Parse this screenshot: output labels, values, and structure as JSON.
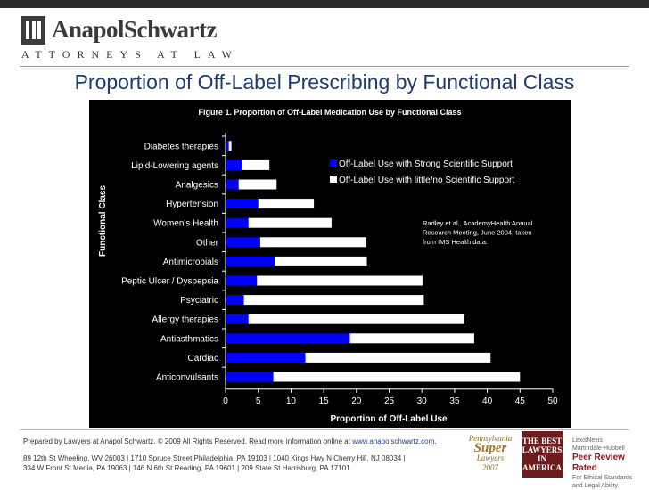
{
  "header": {
    "logo_mark": "III",
    "firm_name": "AnapolSchwartz",
    "firm_tagline": "ATTORNEYS AT LAW"
  },
  "slide_title": "Proportion of Off-Label Prescribing by Functional Class",
  "chart_data": {
    "type": "bar",
    "orientation": "horizontal",
    "stacked": true,
    "title": "Figure 1. Proportion of Off-Label Medication Use by Functional Class",
    "xlabel": "Proportion of Off-Label Use",
    "ylabel": "Functional Class",
    "xlim": [
      0,
      50
    ],
    "xticks": [
      0,
      5,
      10,
      15,
      20,
      25,
      30,
      35,
      40,
      45,
      50
    ],
    "grid": false,
    "legend": "top-right",
    "categories": [
      "Diabetes therapies",
      "Lipid-Lowering agents",
      "Analgesics",
      "Hypertension",
      "Women's Health",
      "Other",
      "Antimicrobials",
      "Peptic Ulcer / Dyspepsia",
      "Psyciatric",
      "Allergy therapies",
      "Antiasthmatics",
      "Cardiac",
      "Anticonvulsants"
    ],
    "series": [
      {
        "name": "Off-Label Use with Strong Scientific Support",
        "color": "#0000ff",
        "values": [
          0.5,
          2.5,
          2.0,
          5.0,
          3.5,
          5.3,
          7.5,
          4.8,
          2.8,
          3.5,
          19.0,
          12.2,
          7.3
        ]
      },
      {
        "name": "Off-Label Use with little/no Scientific Support",
        "color": "#ffffff",
        "values": [
          0.4,
          4.2,
          5.8,
          8.5,
          12.7,
          16.2,
          14.1,
          25.3,
          27.5,
          33.0,
          19.0,
          28.3,
          37.7
        ]
      }
    ],
    "annotation": [
      "Radley et al., AcademyHealth Annual",
      "Research Meeting, June 2004, taken",
      "from IMS Health data."
    ]
  },
  "footer": {
    "prepared_prefix": "Prepared by Lawyers at Anapol Schwartz. © 2009 All Rights Reserved. Read more information online at ",
    "link_text": "www.anapolschwartz.com",
    "prepared_suffix": ".",
    "address_line1": "89 12th St Wheeling, WV 26003 | 1710 Spruce Street Philadelphia, PA 19103 | 1040 Kings Hwy N Cherry Hill, NJ 08034 |",
    "address_line2": "334 W Front St Media, PA 19063 | 146 N 6th St Reading, PA 19601 | 209 State St Harrisburg, PA 17101"
  },
  "badges": {
    "super_lawyers": {
      "l1": "Pennsylvania",
      "l2": "Super",
      "l3": "Lawyers",
      "l4": "2007"
    },
    "best_lawyers": {
      "l1": "THE BEST",
      "l2": "LAWYERS",
      "l3": "IN",
      "l4": "AMERICA"
    },
    "martindale": {
      "l1": "LexisNexis",
      "l2": "Martindale-Hubbell",
      "l3": "Peer Review Rated",
      "l4": "For Ethical Standards and Legal Ability"
    }
  }
}
